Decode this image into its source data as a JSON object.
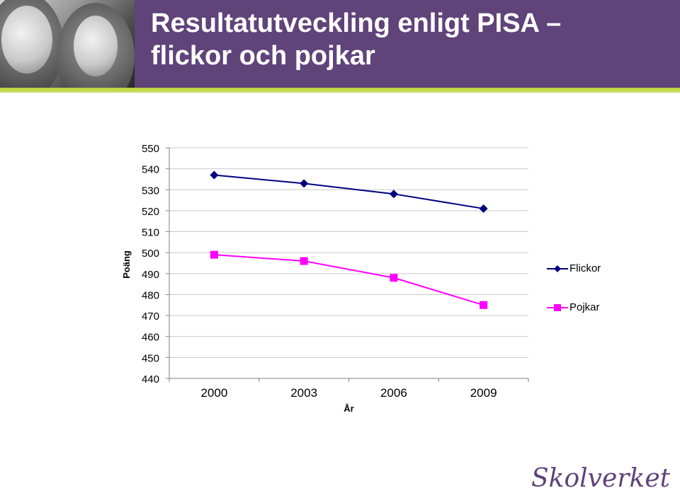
{
  "header": {
    "title_line1": "Resultatutveckling enligt PISA –",
    "title_line2": "flickor och pojkar",
    "colors": {
      "banner": "#5f4379",
      "stripe": "#b8d23a"
    }
  },
  "chart_data": {
    "type": "line",
    "title": "",
    "xlabel": "År",
    "ylabel": "Poäng",
    "categories": [
      "2000",
      "2003",
      "2006",
      "2009"
    ],
    "ylim": [
      440,
      550
    ],
    "yticks": [
      550,
      540,
      530,
      520,
      510,
      500,
      490,
      480,
      470,
      460,
      450,
      440
    ],
    "grid": true,
    "legend_position": "right",
    "series": [
      {
        "name": "Flickor",
        "values": [
          537,
          533,
          528,
          521
        ],
        "color": "#000080",
        "marker": "diamond"
      },
      {
        "name": "Pojkar",
        "values": [
          499,
          496,
          488,
          475
        ],
        "color": "#ff00ff",
        "marker": "square"
      }
    ]
  },
  "logo": {
    "text": "Skolverket"
  }
}
